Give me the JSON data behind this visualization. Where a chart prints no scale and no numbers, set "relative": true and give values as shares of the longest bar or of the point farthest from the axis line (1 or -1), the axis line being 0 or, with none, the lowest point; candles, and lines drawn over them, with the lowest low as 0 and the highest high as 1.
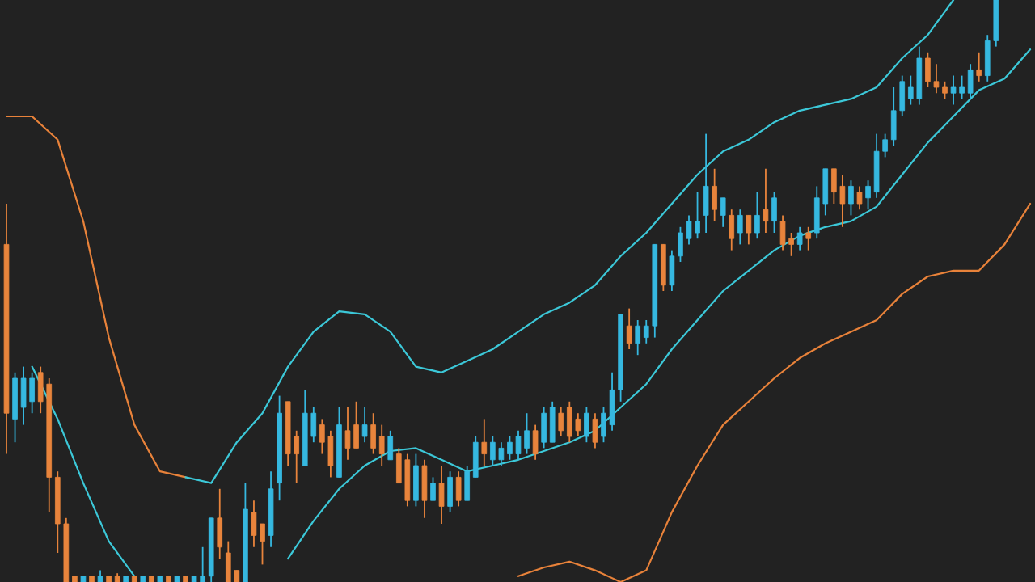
{
  "chart_data": [
    {
      "type": "candlestick",
      "relative": true,
      "categories": [
        null,
        null,
        null,
        null,
        null,
        null,
        null,
        null,
        null,
        null,
        null,
        null,
        null,
        null,
        null,
        null,
        null,
        null,
        null,
        null,
        null,
        null,
        null,
        null,
        null,
        null,
        null,
        null,
        null,
        null,
        null,
        null,
        null,
        null,
        null,
        null,
        null,
        null,
        null,
        null,
        null,
        null,
        null,
        null,
        null,
        null,
        null,
        null,
        null,
        null,
        null,
        null,
        null,
        null,
        null,
        null,
        null,
        null,
        null,
        null,
        null,
        null,
        null,
        null,
        null,
        null,
        null,
        null,
        null,
        null,
        null,
        null,
        null,
        null,
        null,
        null,
        null,
        null,
        null,
        null,
        null,
        null,
        null,
        null,
        null,
        null,
        null,
        null,
        null,
        null,
        null,
        null,
        null,
        null,
        null,
        null,
        null,
        null,
        null,
        null,
        null,
        null,
        null,
        null,
        null,
        null,
        null,
        null,
        null,
        null,
        null,
        null,
        null,
        null,
        null,
        null,
        null
      ],
      "ohlc": [
        [
          0.58,
          0.65,
          0.22,
          0.29
        ],
        [
          0.28,
          0.36,
          0.24,
          0.35
        ],
        [
          0.3,
          0.37,
          0.27,
          0.35
        ],
        [
          0.31,
          0.36,
          0.29,
          0.35
        ],
        [
          0.36,
          0.37,
          0.29,
          0.31
        ],
        [
          0.34,
          0.35,
          0.12,
          0.18
        ],
        [
          0.18,
          0.19,
          0.05,
          0.1
        ],
        [
          0.1,
          0.11,
          0.0,
          0.0
        ],
        [
          0.01,
          0.01,
          0.0,
          0.0
        ],
        [
          0.0,
          0.01,
          0.0,
          0.01
        ],
        [
          0.01,
          0.01,
          0.0,
          0.0
        ],
        [
          0.0,
          0.02,
          0.0,
          0.01
        ],
        [
          0.01,
          0.01,
          0.0,
          0.0
        ],
        [
          0.01,
          0.015,
          0.0,
          0.0
        ],
        [
          0.0,
          0.01,
          0.0,
          0.01
        ],
        [
          0.01,
          0.01,
          0.0,
          0.0
        ],
        [
          0.0,
          0.01,
          0.0,
          0.01
        ],
        [
          0.01,
          0.01,
          0.0,
          0.0
        ],
        [
          0.0,
          0.01,
          0.0,
          0.01
        ],
        [
          0.01,
          0.01,
          0.0,
          0.0
        ],
        [
          0.0,
          0.01,
          0.0,
          0.01
        ],
        [
          0.01,
          0.01,
          0.0,
          0.0
        ],
        [
          0.0,
          0.01,
          0.0,
          0.01
        ],
        [
          0.0,
          0.06,
          0.0,
          0.01
        ],
        [
          0.01,
          0.11,
          0.0,
          0.11
        ],
        [
          0.11,
          0.16,
          0.04,
          0.06
        ],
        [
          0.05,
          0.07,
          0.0,
          0.0
        ],
        [
          0.02,
          0.02,
          0.0,
          0.0
        ],
        [
          0.0,
          0.17,
          0.0,
          0.125
        ],
        [
          0.12,
          0.14,
          0.06,
          0.08
        ],
        [
          0.1,
          0.1,
          0.03,
          0.07
        ],
        [
          0.08,
          0.19,
          0.06,
          0.16
        ],
        [
          0.17,
          0.32,
          0.14,
          0.29
        ],
        [
          0.31,
          0.31,
          0.2,
          0.22
        ],
        [
          0.25,
          0.26,
          0.17,
          0.22
        ],
        [
          0.2,
          0.33,
          0.2,
          0.29
        ],
        [
          0.25,
          0.3,
          0.24,
          0.29
        ],
        [
          0.27,
          0.28,
          0.22,
          0.24
        ],
        [
          0.25,
          0.26,
          0.18,
          0.2
        ],
        [
          0.18,
          0.3,
          0.18,
          0.27
        ],
        [
          0.26,
          0.3,
          0.21,
          0.23
        ],
        [
          0.27,
          0.31,
          0.23,
          0.23
        ],
        [
          0.25,
          0.3,
          0.24,
          0.27
        ],
        [
          0.27,
          0.29,
          0.22,
          0.23
        ],
        [
          0.25,
          0.27,
          0.2,
          0.22
        ],
        [
          0.21,
          0.26,
          0.21,
          0.25
        ],
        [
          0.22,
          0.23,
          0.17,
          0.17
        ],
        [
          0.21,
          0.22,
          0.13,
          0.14
        ],
        [
          0.14,
          0.22,
          0.13,
          0.2
        ],
        [
          0.2,
          0.21,
          0.11,
          0.14
        ],
        [
          0.14,
          0.18,
          0.14,
          0.17
        ],
        [
          0.17,
          0.2,
          0.1,
          0.13
        ],
        [
          0.13,
          0.19,
          0.12,
          0.18
        ],
        [
          0.18,
          0.19,
          0.13,
          0.14
        ],
        [
          0.14,
          0.2,
          0.14,
          0.19
        ],
        [
          0.18,
          0.25,
          0.18,
          0.24
        ],
        [
          0.24,
          0.28,
          0.2,
          0.22
        ],
        [
          0.21,
          0.25,
          0.2,
          0.24
        ],
        [
          0.21,
          0.24,
          0.2,
          0.23
        ],
        [
          0.22,
          0.25,
          0.21,
          0.24
        ],
        [
          0.22,
          0.26,
          0.21,
          0.25
        ],
        [
          0.23,
          0.29,
          0.22,
          0.26
        ],
        [
          0.26,
          0.27,
          0.21,
          0.22
        ],
        [
          0.24,
          0.3,
          0.23,
          0.29
        ],
        [
          0.24,
          0.31,
          0.24,
          0.3
        ],
        [
          0.29,
          0.3,
          0.25,
          0.26
        ],
        [
          0.3,
          0.31,
          0.24,
          0.25
        ],
        [
          0.28,
          0.29,
          0.25,
          0.26
        ],
        [
          0.25,
          0.3,
          0.24,
          0.29
        ],
        [
          0.28,
          0.29,
          0.23,
          0.24
        ],
        [
          0.25,
          0.3,
          0.24,
          0.29
        ],
        [
          0.27,
          0.36,
          0.26,
          0.33
        ],
        [
          0.33,
          0.46,
          0.31,
          0.46
        ],
        [
          0.44,
          0.47,
          0.4,
          0.41
        ],
        [
          0.41,
          0.45,
          0.39,
          0.44
        ],
        [
          0.42,
          0.45,
          0.41,
          0.44
        ],
        [
          0.44,
          0.58,
          0.42,
          0.58
        ],
        [
          0.58,
          0.58,
          0.5,
          0.51
        ],
        [
          0.51,
          0.57,
          0.5,
          0.56
        ],
        [
          0.56,
          0.61,
          0.55,
          0.6
        ],
        [
          0.59,
          0.63,
          0.58,
          0.62
        ],
        [
          0.6,
          0.67,
          0.59,
          0.62
        ],
        [
          0.63,
          0.77,
          0.6,
          0.68
        ],
        [
          0.68,
          0.71,
          0.62,
          0.64
        ],
        [
          0.63,
          0.66,
          0.61,
          0.66
        ],
        [
          0.63,
          0.64,
          0.57,
          0.59
        ],
        [
          0.6,
          0.64,
          0.58,
          0.63
        ],
        [
          0.63,
          0.63,
          0.58,
          0.6
        ],
        [
          0.6,
          0.67,
          0.59,
          0.63
        ],
        [
          0.64,
          0.71,
          0.6,
          0.62
        ],
        [
          0.62,
          0.67,
          0.6,
          0.66
        ],
        [
          0.62,
          0.63,
          0.57,
          0.58
        ],
        [
          0.59,
          0.6,
          0.56,
          0.58
        ],
        [
          0.58,
          0.61,
          0.57,
          0.6
        ],
        [
          0.6,
          0.61,
          0.57,
          0.59
        ],
        [
          0.6,
          0.68,
          0.59,
          0.66
        ],
        [
          0.65,
          0.71,
          0.63,
          0.71
        ],
        [
          0.71,
          0.71,
          0.65,
          0.67
        ],
        [
          0.68,
          0.7,
          0.61,
          0.65
        ],
        [
          0.65,
          0.69,
          0.63,
          0.68
        ],
        [
          0.67,
          0.68,
          0.64,
          0.65
        ],
        [
          0.66,
          0.69,
          0.64,
          0.68
        ],
        [
          0.67,
          0.77,
          0.66,
          0.74
        ],
        [
          0.74,
          0.77,
          0.73,
          0.76
        ],
        [
          0.76,
          0.85,
          0.75,
          0.81
        ],
        [
          0.81,
          0.87,
          0.8,
          0.86
        ],
        [
          0.83,
          0.87,
          0.82,
          0.85
        ],
        [
          0.83,
          0.92,
          0.82,
          0.9
        ],
        [
          0.9,
          0.91,
          0.85,
          0.86
        ],
        [
          0.86,
          0.89,
          0.84,
          0.85
        ],
        [
          0.85,
          0.86,
          0.83,
          0.84
        ],
        [
          0.84,
          0.87,
          0.82,
          0.85
        ],
        [
          0.84,
          0.87,
          0.83,
          0.85
        ],
        [
          0.84,
          0.89,
          0.83,
          0.88
        ],
        [
          0.88,
          0.91,
          0.86,
          0.87
        ],
        [
          0.87,
          0.94,
          0.86,
          0.93
        ],
        [
          0.93,
          1.0,
          0.92,
          1.0
        ]
      ],
      "colors": [
        "#e8843c",
        "#36b8e0",
        "#36b8e0",
        "#36b8e0",
        "#e8843c",
        "#e8843c",
        "#e8843c",
        "#e8843c",
        "#e8843c",
        "#36b8e0",
        "#e8843c",
        "#36b8e0",
        "#e8843c",
        "#e8843c",
        "#36b8e0",
        "#e8843c",
        "#36b8e0",
        "#e8843c",
        "#36b8e0",
        "#e8843c",
        "#36b8e0",
        "#e8843c",
        "#36b8e0",
        "#36b8e0",
        "#36b8e0",
        "#e8843c",
        "#e8843c",
        "#e8843c",
        "#36b8e0",
        "#e8843c",
        "#e8843c",
        "#36b8e0",
        "#36b8e0",
        "#e8843c",
        "#e8843c",
        "#36b8e0",
        "#36b8e0",
        "#e8843c",
        "#e8843c",
        "#36b8e0",
        "#e8843c",
        "#e8843c",
        "#36b8e0",
        "#e8843c",
        "#e8843c",
        "#36b8e0",
        "#e8843c",
        "#e8843c",
        "#36b8e0",
        "#e8843c",
        "#36b8e0",
        "#e8843c",
        "#36b8e0",
        "#e8843c",
        "#36b8e0",
        "#36b8e0",
        "#e8843c",
        "#36b8e0",
        "#36b8e0",
        "#36b8e0",
        "#36b8e0",
        "#36b8e0",
        "#e8843c",
        "#36b8e0",
        "#36b8e0",
        "#e8843c",
        "#e8843c",
        "#e8843c",
        "#36b8e0",
        "#e8843c",
        "#36b8e0",
        "#36b8e0",
        "#36b8e0",
        "#e8843c",
        "#36b8e0",
        "#36b8e0",
        "#36b8e0",
        "#e8843c",
        "#36b8e0",
        "#36b8e0",
        "#36b8e0",
        "#36b8e0",
        "#36b8e0",
        "#e8843c",
        "#36b8e0",
        "#e8843c",
        "#36b8e0",
        "#e8843c",
        "#36b8e0",
        "#e8843c",
        "#36b8e0",
        "#e8843c",
        "#e8843c",
        "#36b8e0",
        "#e8843c",
        "#36b8e0",
        "#36b8e0",
        "#e8843c",
        "#e8843c",
        "#36b8e0",
        "#e8843c",
        "#36b8e0",
        "#36b8e0",
        "#36b8e0",
        "#36b8e0",
        "#36b8e0",
        "#36b8e0",
        "#36b8e0",
        "#e8843c",
        "#e8843c",
        "#e8843c",
        "#36b8e0",
        "#36b8e0",
        "#36b8e0",
        "#e8843c",
        "#36b8e0",
        "#36b8e0"
      ]
    },
    {
      "type": "line",
      "relative": true,
      "categories": [
        null,
        null,
        null,
        null,
        null,
        null,
        null,
        null,
        null,
        null,
        null,
        null,
        null,
        null,
        null,
        null,
        null,
        null,
        null,
        null,
        null,
        null,
        null,
        null,
        null,
        null,
        null,
        null,
        null,
        null,
        null,
        null,
        null,
        null,
        null,
        null,
        null,
        null,
        null,
        null,
        null
      ],
      "series": [
        {
          "color": "#e8823a",
          "values": [
            0.8,
            0.8,
            0.76,
            0.62,
            0.42,
            0.27,
            0.19,
            0.18,
            null,
            null,
            null,
            null,
            null,
            null,
            null,
            null,
            null,
            null,
            null,
            null,
            null,
            null,
            null,
            null,
            null,
            null,
            null,
            null,
            null,
            null,
            null,
            null,
            null,
            null,
            null,
            null,
            null,
            null,
            null,
            null,
            null
          ]
        },
        {
          "color": "#3cc8d8",
          "values": [
            null,
            null,
            null,
            null,
            null,
            null,
            null,
            0.18,
            0.17,
            0.24,
            0.29,
            0.37,
            0.43,
            0.465,
            0.46,
            0.43,
            0.37,
            0.36,
            0.38,
            0.4,
            0.43,
            0.46,
            0.48,
            0.51,
            0.56,
            0.6,
            0.65,
            0.7,
            0.74,
            0.76,
            0.79,
            0.81,
            0.82,
            0.83,
            0.85,
            0.9,
            0.94,
            1.0,
            null,
            null,
            null
          ]
        },
        {
          "color": "#3cc8d8",
          "values": [
            null,
            0.37,
            0.28,
            0.17,
            0.07,
            0.01,
            null,
            null,
            null,
            null,
            null,
            null,
            null,
            null,
            null,
            null,
            null,
            null,
            null,
            null,
            null,
            null,
            null,
            null,
            null,
            null,
            null,
            null,
            null,
            null,
            null,
            null,
            null,
            null,
            null,
            null,
            null,
            null,
            null,
            null,
            null
          ]
        },
        {
          "color": "#3cc8d8",
          "values": [
            null,
            null,
            null,
            null,
            null,
            null,
            null,
            null,
            null,
            null,
            null,
            0.04,
            0.105,
            0.16,
            0.2,
            0.225,
            0.23,
            0.21,
            0.19,
            0.2,
            0.21,
            0.225,
            0.24,
            0.26,
            0.3,
            0.34,
            0.4,
            0.45,
            0.5,
            0.535,
            0.57,
            0.595,
            0.61,
            0.62,
            0.645,
            0.7,
            0.755,
            0.8,
            0.845,
            0.865,
            0.915
          ]
        },
        {
          "color": "#e8823a",
          "values": [
            null,
            null,
            null,
            null,
            null,
            null,
            null,
            null,
            null,
            null,
            null,
            null,
            null,
            null,
            null,
            null,
            null,
            null,
            null,
            null,
            0.01,
            0.025,
            0.035,
            0.02,
            0.0,
            0.02,
            0.12,
            0.2,
            0.27,
            0.31,
            0.35,
            0.385,
            0.41,
            0.43,
            0.45,
            0.495,
            0.525,
            0.535,
            0.535,
            0.58,
            0.65
          ]
        }
      ]
    }
  ]
}
